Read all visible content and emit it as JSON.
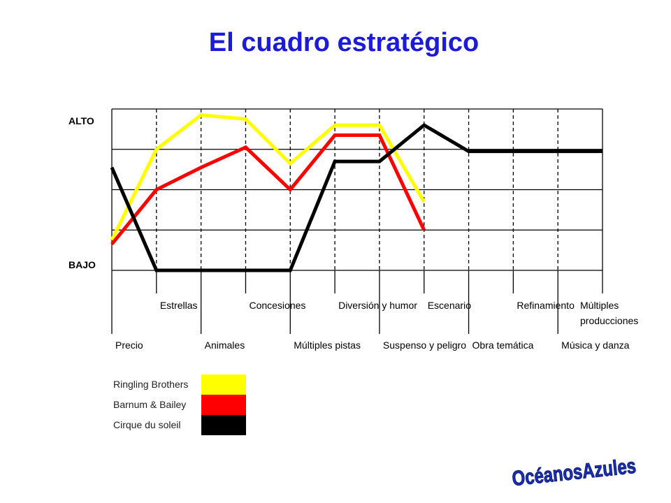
{
  "slide": {
    "title": "El cuadro estratégico"
  },
  "colors": {
    "ringling": "#ffff00",
    "barnum": "#ff0000",
    "cirque": "#000000",
    "title": "#1b1bd8",
    "logo_fill": "#1b2fb0"
  },
  "chart_data": {
    "type": "line",
    "ylabels": {
      "high": "ALTO",
      "low": "BAJO"
    },
    "ylim": [
      0,
      4
    ],
    "grid": true,
    "categories": [
      "Precio",
      "Estrellas",
      "Animales",
      "Concesiones",
      "Múltiples pistas",
      "Diversión y humor",
      "Suspenso y peligro",
      "Escenario",
      "Obra temática",
      "Refinamiento",
      "Música y danza",
      "Múltiples producciones"
    ],
    "series": [
      {
        "name": "Ringling Brothers",
        "color": "#ffff00",
        "values": [
          0.75,
          3.0,
          3.85,
          3.75,
          2.65,
          3.6,
          3.6,
          1.7,
          null,
          null,
          null,
          null
        ]
      },
      {
        "name": "Barnum & Bailey",
        "color": "#ff0000",
        "values": [
          0.65,
          2.0,
          2.55,
          3.05,
          2.0,
          3.35,
          3.35,
          1.0,
          null,
          null,
          null,
          null
        ]
      },
      {
        "name": "Cirque du soleil",
        "color": "#000000",
        "values": [
          2.55,
          0.0,
          0.0,
          0.0,
          0.0,
          2.7,
          2.7,
          3.6,
          2.95,
          2.95,
          2.95,
          2.95
        ]
      }
    ],
    "legend_position": "bottom-left"
  },
  "logo": {
    "text": "OcéanosAzules"
  }
}
